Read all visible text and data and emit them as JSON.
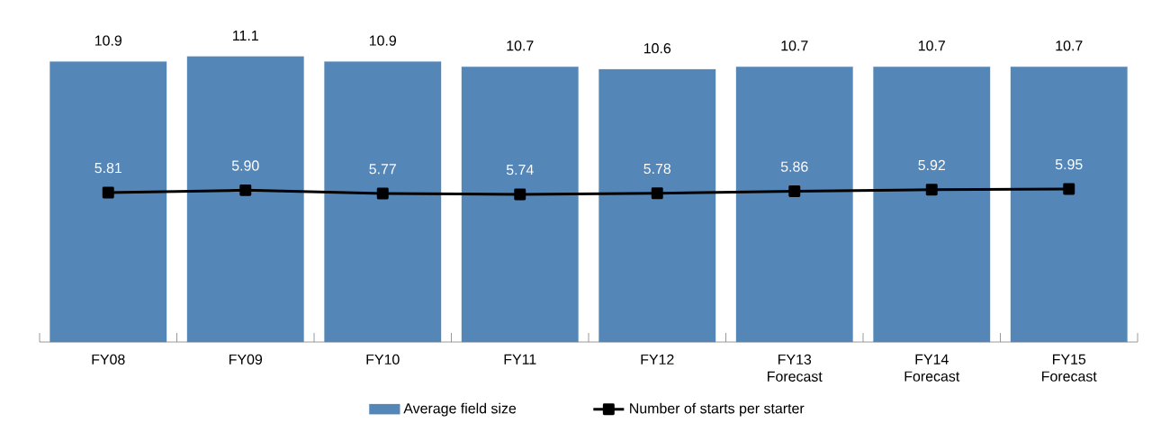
{
  "chart_data": {
    "type": "bar",
    "categories": [
      "FY08",
      "FY09",
      "FY10",
      "FY11",
      "FY12",
      "FY13 Forecast",
      "FY14 Forecast",
      "FY15 Forecast"
    ],
    "legend": "bottom",
    "series": [
      {
        "name": "Average field size",
        "color": "#5586b8",
        "values": [
          10.9,
          11.1,
          10.9,
          10.7,
          10.6,
          10.7,
          10.7,
          10.7
        ],
        "value_labels": [
          "10.9",
          "11.1",
          "10.9",
          "10.7",
          "10.6",
          "10.7",
          "10.7",
          "10.7"
        ]
      },
      {
        "name": "Number of starts per starter",
        "type": "line",
        "color": "#000000",
        "marker": "square",
        "values": [
          5.81,
          5.9,
          5.77,
          5.74,
          5.78,
          5.86,
          5.92,
          5.95
        ],
        "value_labels": [
          "5.81",
          "5.90",
          "5.77",
          "5.74",
          "5.78",
          "5.86",
          "5.92",
          "5.95"
        ]
      }
    ]
  }
}
